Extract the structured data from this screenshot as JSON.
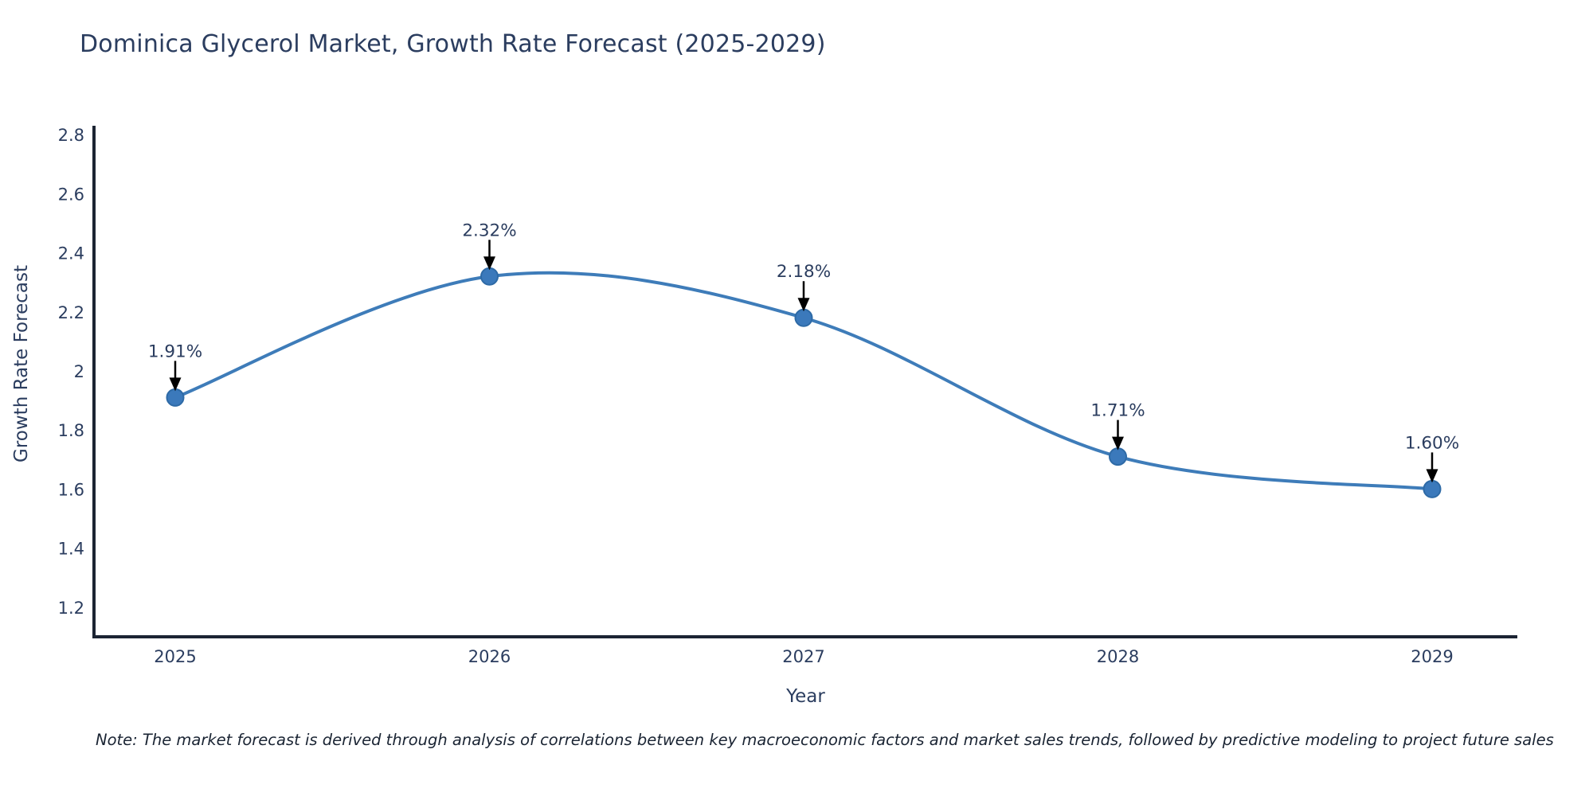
{
  "chart_data": {
    "type": "line",
    "line_shape": "spline",
    "title": "Dominica Glycerol Market, Growth Rate Forecast (2025-2029)",
    "xlabel": "Year",
    "ylabel": "Growth Rate Forecast",
    "x": [
      2025,
      2026,
      2027,
      2028,
      2029
    ],
    "series": [
      {
        "name": "Growth Rate Forecast",
        "values": [
          1.91,
          2.32,
          2.18,
          1.71,
          1.6
        ]
      }
    ],
    "point_labels": [
      "1.91%",
      "2.32%",
      "2.18%",
      "1.71%",
      "1.60%"
    ],
    "x_ticks": [
      "2025",
      "2026",
      "2027",
      "2028",
      "2029"
    ],
    "y_ticks": [
      "2.8",
      "2.6",
      "2.4",
      "2.2",
      "2",
      "1.8",
      "1.6",
      "1.4",
      "1.2"
    ],
    "ylim": [
      1.1,
      2.83
    ],
    "xlim": [
      2024.74,
      2029.26
    ],
    "grid": false,
    "legend": false,
    "colors": {
      "line": "#3e7cb9",
      "marker_fill": "#3b79bb",
      "marker_edge": "#2e6aa6",
      "axis_line": "#1c2433",
      "tick_text": "#2b3d5f",
      "annotation_text": "#2b3d5f",
      "arrow": "#000000",
      "title_text": "#2b3d5f"
    }
  },
  "note": {
    "text": "Note: The market forecast is derived through analysis of correlations between key macroeconomic factors and market sales trends, followed by predictive modeling to project future sales"
  }
}
